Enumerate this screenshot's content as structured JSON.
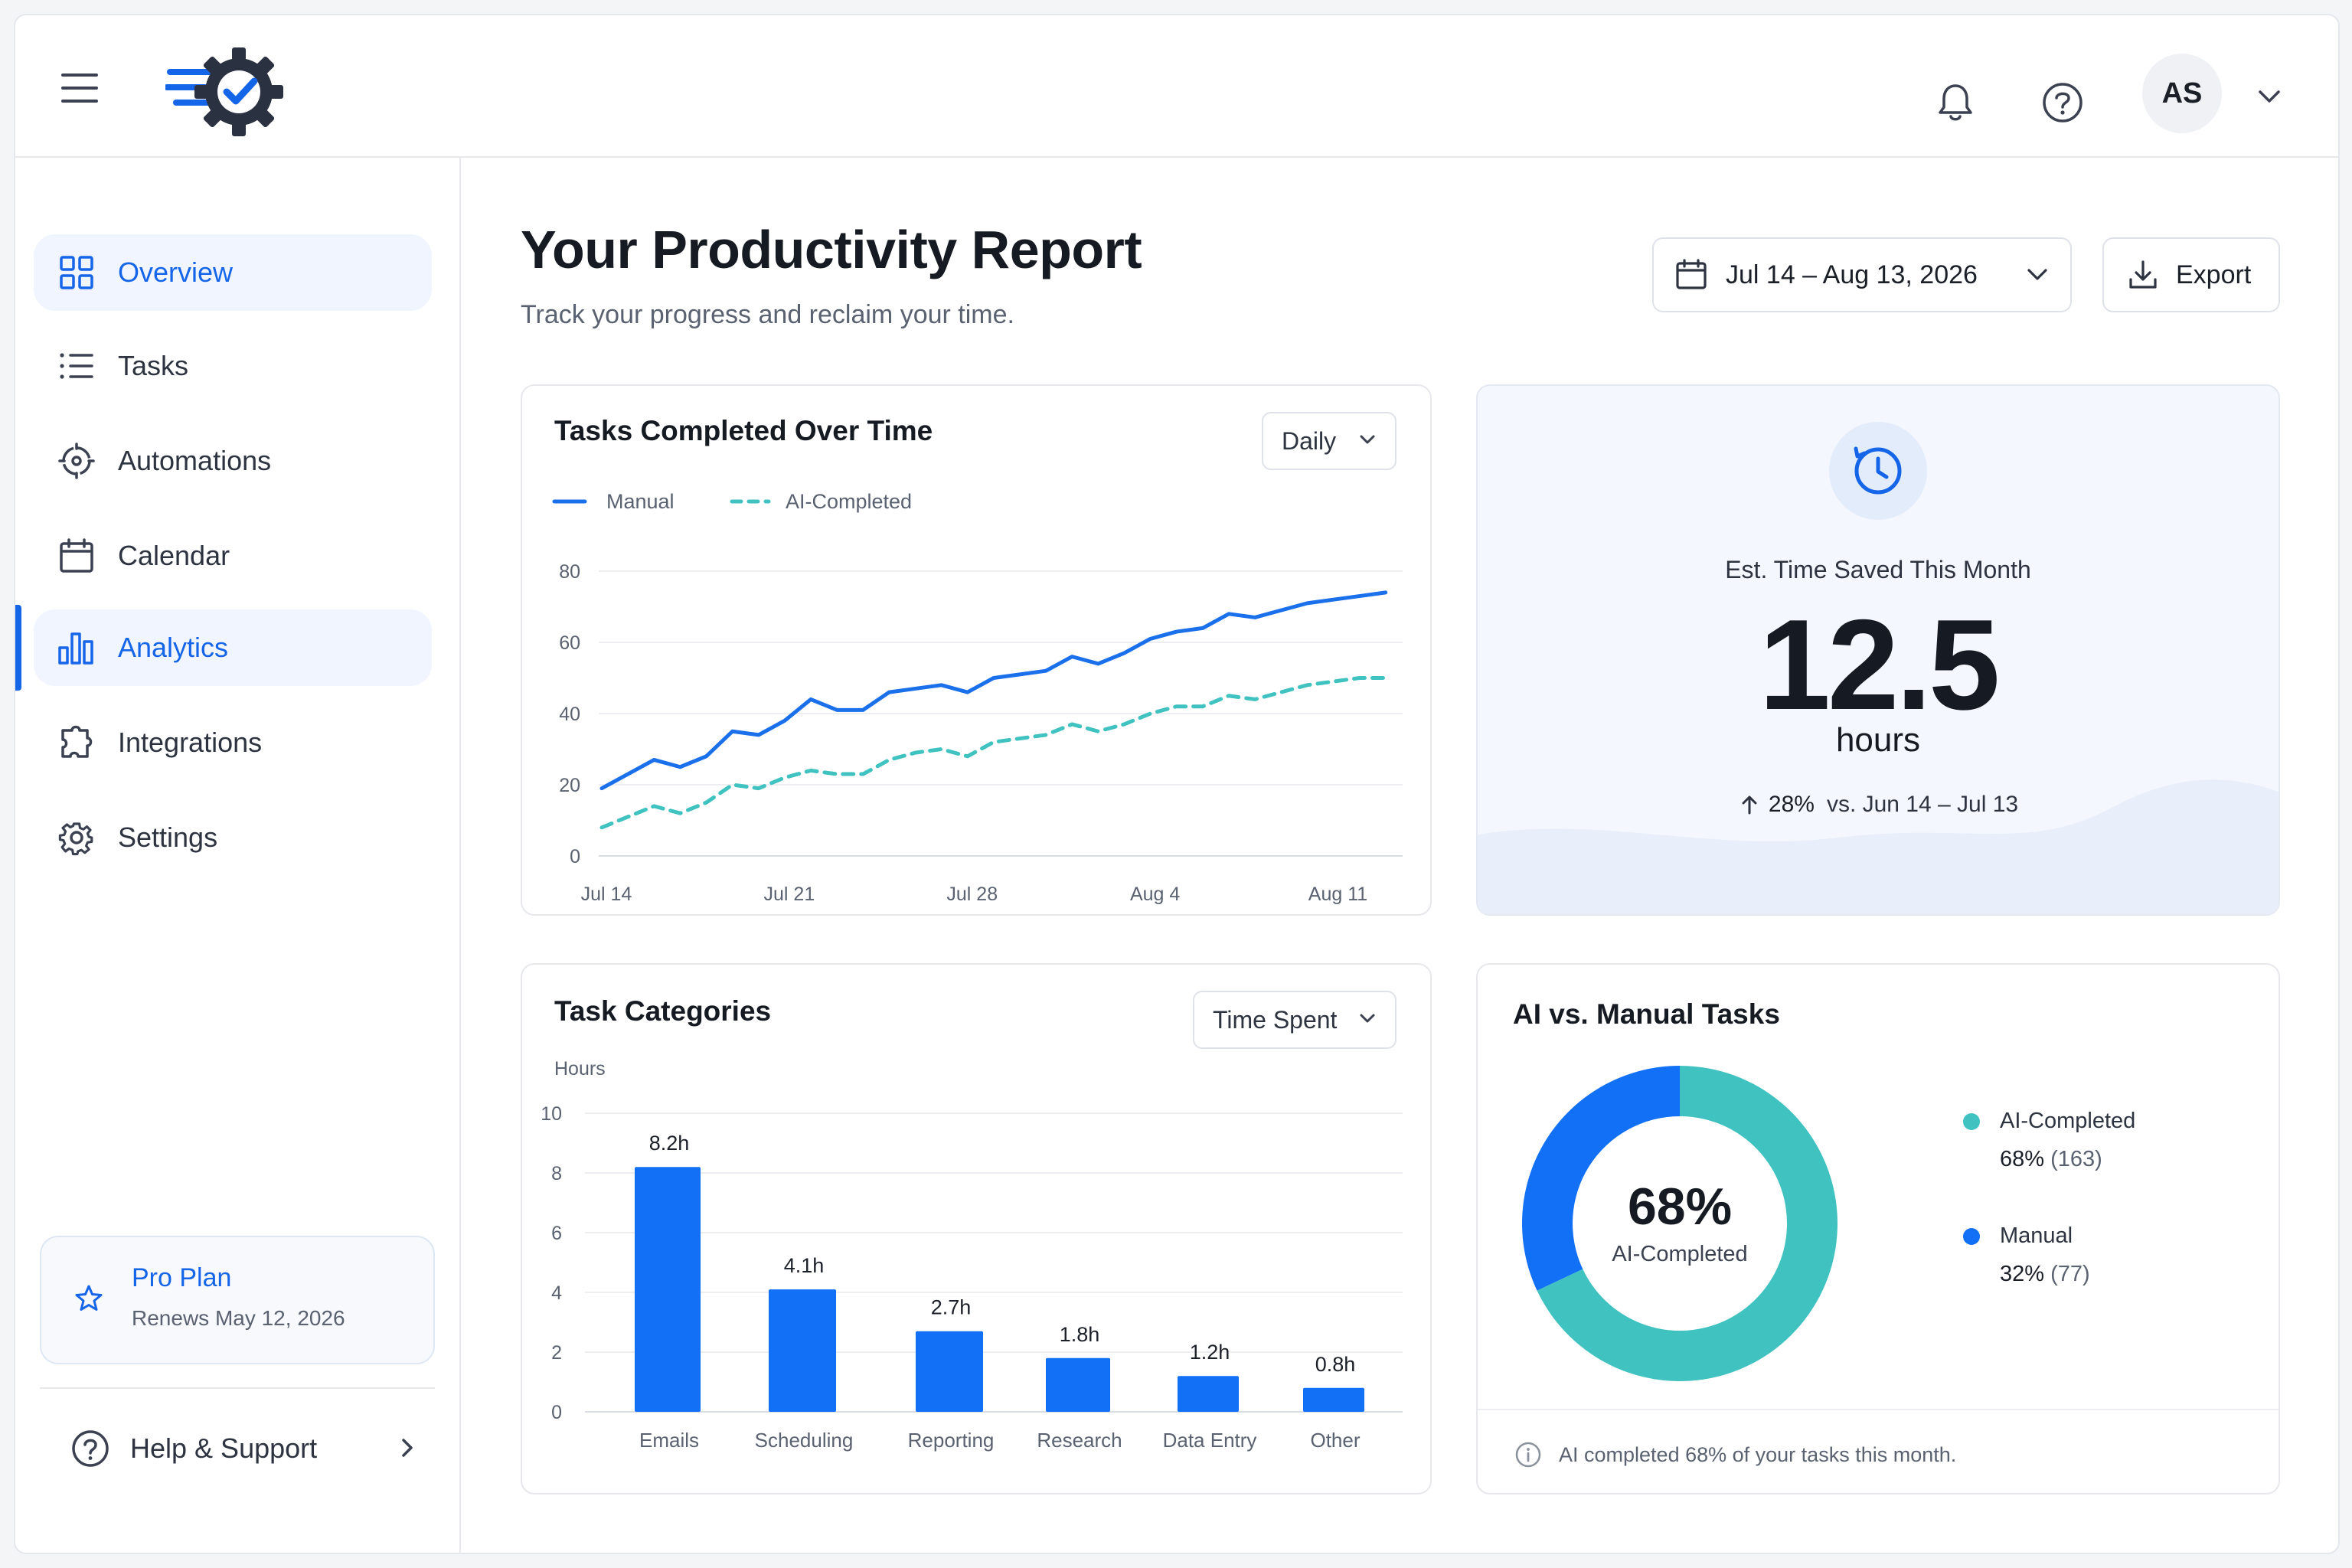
{
  "header": {
    "avatar_initials": "AS",
    "icons": [
      "menu-icon",
      "logo-gear-check",
      "bell-icon",
      "help-circle-icon",
      "chevron-down-icon"
    ]
  },
  "sidebar": {
    "items": [
      {
        "label": "Overview",
        "icon": "grid-icon"
      },
      {
        "label": "Tasks",
        "icon": "list-icon"
      },
      {
        "label": "Automations",
        "icon": "automation-icon"
      },
      {
        "label": "Calendar",
        "icon": "calendar-icon"
      },
      {
        "label": "Analytics",
        "icon": "bar-chart-icon"
      },
      {
        "label": "Integrations",
        "icon": "puzzle-icon"
      },
      {
        "label": "Settings",
        "icon": "gear-icon"
      }
    ],
    "plan": {
      "title": "Pro Plan",
      "subtitle": "Renews May 12, 2026"
    },
    "help_label": "Help & Support"
  },
  "page": {
    "title": "Your Productivity Report",
    "subtitle": "Track your progress and reclaim your time.",
    "date_range": "Jul 14 – Aug 13, 2026",
    "export_label": "Export"
  },
  "tasks_card": {
    "title": "Tasks Completed Over Time",
    "dropdown": "Daily"
  },
  "time_saved": {
    "label": "Est. Time Saved This Month",
    "value": "12.5",
    "unit": "hours",
    "change_pct": "28%",
    "change_label": "vs. Jun 14 – Jul 13"
  },
  "categories_card": {
    "title": "Task Categories",
    "dropdown": "Time Spent"
  },
  "ai_card": {
    "title": "AI vs. Manual Tasks",
    "center_value": "68%",
    "center_label": "AI-Completed",
    "legend": [
      {
        "name": "AI-Completed",
        "pct": "68%",
        "count": "(163)"
      },
      {
        "name": "Manual",
        "pct": "32%",
        "count": "(77)"
      }
    ],
    "footnote": "AI completed 68% of your tasks this month."
  },
  "colors": {
    "accent": "#1565e8",
    "manual_series": "#1a6fea",
    "ai_series": "#3fc2c0",
    "bar": "#1170f5",
    "text_dark": "#161a22"
  },
  "chart_data": [
    {
      "type": "line",
      "title": "Tasks Completed Over Time",
      "x": [
        "Jul 14",
        "Jul 15",
        "Jul 16",
        "Jul 17",
        "Jul 18",
        "Jul 19",
        "Jul 20",
        "Jul 21",
        "Jul 22",
        "Jul 23",
        "Jul 24",
        "Jul 25",
        "Jul 26",
        "Jul 27",
        "Jul 28",
        "Jul 29",
        "Jul 30",
        "Jul 31",
        "Aug 1",
        "Aug 2",
        "Aug 3",
        "Aug 4",
        "Aug 5",
        "Aug 6",
        "Aug 7",
        "Aug 8",
        "Aug 9",
        "Aug 10",
        "Aug 11",
        "Aug 12",
        "Aug 13"
      ],
      "xticks": [
        "Jul 14",
        "Jul 21",
        "Jul 28",
        "Aug 4",
        "Aug 11"
      ],
      "yticks": [
        0,
        20,
        40,
        60,
        80
      ],
      "ylim": [
        0,
        80
      ],
      "grid": true,
      "legend_position": "top-left",
      "series": [
        {
          "name": "Manual",
          "style": "solid",
          "values": [
            19,
            23,
            27,
            25,
            28,
            35,
            34,
            38,
            44,
            41,
            41,
            46,
            47,
            48,
            46,
            50,
            51,
            52,
            56,
            54,
            57,
            61,
            63,
            64,
            68,
            67,
            69,
            71,
            72,
            73,
            74
          ]
        },
        {
          "name": "AI-Completed",
          "style": "dashed",
          "values": [
            8,
            11,
            14,
            12,
            15,
            20,
            19,
            22,
            24,
            23,
            23,
            27,
            29,
            30,
            28,
            32,
            33,
            34,
            37,
            35,
            37,
            40,
            42,
            42,
            45,
            44,
            46,
            48,
            49,
            50,
            50
          ]
        }
      ]
    },
    {
      "type": "bar",
      "title": "Task Categories",
      "ylabel": "Hours",
      "ylim": [
        0,
        10
      ],
      "yticks": [
        0,
        2,
        4,
        6,
        8,
        10
      ],
      "grid": true,
      "categories": [
        "Emails",
        "Scheduling",
        "Reporting",
        "Research",
        "Data Entry",
        "Other"
      ],
      "values": [
        8.2,
        4.1,
        2.7,
        1.8,
        1.2,
        0.8
      ],
      "data_labels": [
        "8.2h",
        "4.1h",
        "2.7h",
        "1.8h",
        "1.2h",
        "0.8h"
      ]
    },
    {
      "type": "pie",
      "title": "AI vs. Manual Tasks",
      "categories": [
        "AI-Completed",
        "Manual"
      ],
      "values": [
        68,
        32
      ],
      "counts": [
        163,
        77
      ]
    }
  ]
}
